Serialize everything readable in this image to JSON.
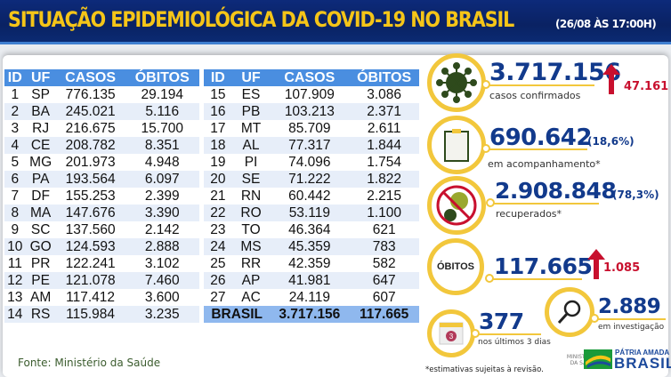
{
  "header": {
    "title": "SITUAÇÃO EPIDEMIOLÓGICA DA COVID-19 NO BRASIL",
    "date": "(26/08 ÀS 17:00H)"
  },
  "table": {
    "columns": [
      "ID",
      "UF",
      "CASOS",
      "ÓBITOS"
    ],
    "left": [
      [
        "1",
        "SP",
        "776.135",
        "29.194"
      ],
      [
        "2",
        "BA",
        "245.021",
        "5.116"
      ],
      [
        "3",
        "RJ",
        "216.675",
        "15.700"
      ],
      [
        "4",
        "CE",
        "208.782",
        "8.351"
      ],
      [
        "5",
        "MG",
        "201.973",
        "4.948"
      ],
      [
        "6",
        "PA",
        "193.564",
        "6.097"
      ],
      [
        "7",
        "DF",
        "155.253",
        "2.399"
      ],
      [
        "8",
        "MA",
        "147.676",
        "3.390"
      ],
      [
        "9",
        "SC",
        "137.560",
        "2.142"
      ],
      [
        "10",
        "GO",
        "124.593",
        "2.888"
      ],
      [
        "11",
        "PR",
        "122.241",
        "3.102"
      ],
      [
        "12",
        "PE",
        "121.078",
        "7.460"
      ],
      [
        "13",
        "AM",
        "117.412",
        "3.600"
      ],
      [
        "14",
        "RS",
        "115.984",
        "3.235"
      ]
    ],
    "right": [
      [
        "15",
        "ES",
        "107.909",
        "3.086"
      ],
      [
        "16",
        "PB",
        "103.213",
        "2.371"
      ],
      [
        "17",
        "MT",
        "85.709",
        "2.611"
      ],
      [
        "18",
        "AL",
        "77.317",
        "1.844"
      ],
      [
        "19",
        "PI",
        "74.096",
        "1.754"
      ],
      [
        "20",
        "SE",
        "71.222",
        "1.822"
      ],
      [
        "21",
        "RN",
        "60.442",
        "2.215"
      ],
      [
        "22",
        "RO",
        "53.119",
        "1.100"
      ],
      [
        "23",
        "TO",
        "46.364",
        "621"
      ],
      [
        "24",
        "MS",
        "45.359",
        "783"
      ],
      [
        "25",
        "RR",
        "42.359",
        "582"
      ],
      [
        "26",
        "AP",
        "41.981",
        "647"
      ],
      [
        "27",
        "AC",
        "24.119",
        "607"
      ]
    ],
    "total": {
      "label": "BRASIL",
      "casos": "3.717.156",
      "obitos": "117.665"
    }
  },
  "stats": {
    "confirmados": {
      "value": "3.717.156",
      "label": "casos confirmados",
      "increase": "47.161",
      "icon": "virus-icon"
    },
    "acompanhamento": {
      "value": "690.642",
      "pct": "(18,6%)",
      "label": "em acompanhamento*",
      "icon": "clipboard-icon"
    },
    "recuperados": {
      "value": "2.908.848",
      "pct": "(78,3%)",
      "label": "recuperados*",
      "icon": "no-virus-icon"
    },
    "obitos": {
      "badge": "ÓBITOS",
      "value": "117.665",
      "increase": "1.085"
    },
    "investigacao": {
      "value": "2.889",
      "label": "em investigação",
      "icon": "magnifier-icon"
    },
    "ultimos": {
      "value": "377",
      "label": "nos últimos 3 dias",
      "calendar_day": "3",
      "icon": "calendar-icon"
    }
  },
  "footer": {
    "source": "Fonte: Ministério da Saúde",
    "note": "*estimativas sujeitas à revisão.",
    "ministry": "MINISTÉRIO DA SAÚDE",
    "slogan_top": "PÁTRIA AMADA",
    "slogan_main": "BRASIL"
  },
  "colors": {
    "header": "#0a2263",
    "title": "#f5c518",
    "accent": "#f2c73c",
    "number": "#123a8c",
    "increase": "#c8102e",
    "table_header": "#4a8ee0"
  }
}
